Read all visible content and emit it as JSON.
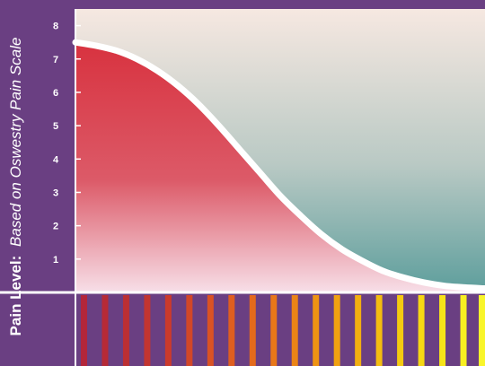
{
  "chart_data": {
    "type": "area",
    "ylabel_bold": "Pain Level:",
    "ylabel_italic": "Based on Oswestry Pain Scale",
    "y_ticks": [
      "1",
      "2",
      "3",
      "4",
      "5",
      "6",
      "7",
      "8"
    ],
    "ylim": [
      0,
      8.5
    ],
    "series": [
      {
        "x": [
          0,
          5,
          10,
          15,
          20,
          25,
          30,
          35,
          40,
          45,
          50,
          55,
          60,
          65,
          70,
          75,
          80,
          85,
          90,
          95,
          100
        ],
        "values": [
          7.5,
          7.4,
          7.25,
          7.0,
          6.65,
          6.2,
          5.65,
          5.0,
          4.3,
          3.6,
          2.9,
          2.3,
          1.75,
          1.3,
          0.95,
          0.65,
          0.45,
          0.3,
          0.2,
          0.15,
          0.12
        ]
      }
    ],
    "colors": {
      "frame": "#6a3f82",
      "curve_fill_top": "#d8323f",
      "curve_fill_bottom": "#f7dfe8",
      "background_top": "#f6e8e1",
      "background_bottom": "#5d9e9c",
      "curve_outline": "#ffffff",
      "tick_label": "#ffffff"
    },
    "stripe_colors": [
      "#b3263a",
      "#b62a36",
      "#bb2f33",
      "#c23530",
      "#cb3a2c",
      "#d24728",
      "#d95224",
      "#df5e20",
      "#e46a1c",
      "#e87719",
      "#eb8416",
      "#ee9313",
      "#f0a111",
      "#f2af10",
      "#f4bd10",
      "#f5ca11",
      "#f6d713",
      "#f7e318",
      "#f8ee21",
      "#f9f52b"
    ]
  }
}
